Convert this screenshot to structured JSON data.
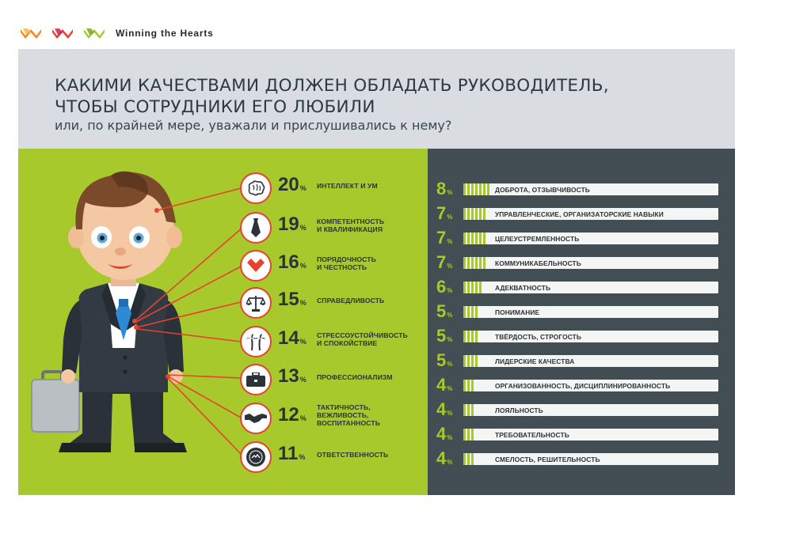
{
  "brand": {
    "name": "Winning the Hearts",
    "logo_colors": [
      "#f08a24",
      "#e8412c",
      "#a8c92c"
    ]
  },
  "header": {
    "title_line1": "КАКИМИ КАЧЕСТВАМИ ДОЛЖЕН ОБЛАДАТЬ РУКОВОДИТЕЛЬ,",
    "title_line2": "ЧТОБЫ СОТРУДНИКИ ЕГО ЛЮБИЛИ",
    "subtitle": "или, по крайней мере, уважали и прислушивались к нему?"
  },
  "colors": {
    "green": "#a8c92c",
    "dark": "#434e54",
    "red": "#e8412c",
    "header_bg": "#d9dce1"
  },
  "chart_data": {
    "type": "bar",
    "unit": "%",
    "top_qualities": [
      {
        "value": 20,
        "label": "ИНТЕЛЛЕКТ И УМ",
        "icon": "brain-icon"
      },
      {
        "value": 19,
        "label": "КОМПЕТЕНТНОСТЬ\nИ КВАЛИФИКАЦИЯ",
        "icon": "tie-icon"
      },
      {
        "value": 16,
        "label": "ПОРЯДОЧНОСТЬ\nИ ЧЕСТНОСТЬ",
        "icon": "heart-icon"
      },
      {
        "value": 15,
        "label": "СПРАВЕДЛИВОСТЬ",
        "icon": "scales-icon"
      },
      {
        "value": 14,
        "label": "СТРЕССОУСТОЙЧИВОСТЬ\nИ СПОКОЙСТВИЕ",
        "icon": "palm-icon"
      },
      {
        "value": 13,
        "label": "ПРОФЕССИОНАЛИЗМ",
        "icon": "briefcase-icon"
      },
      {
        "value": 12,
        "label": "ТАКТИЧНОСТЬ,\nВЕЖЛИВОСТЬ,\nВОСПИТАННОСТЬ",
        "icon": "handshake-icon"
      },
      {
        "value": 11,
        "label": "ОТВЕТСТВЕННОСТЬ",
        "icon": "seal-icon"
      }
    ],
    "other_qualities": [
      {
        "value": 8,
        "label": "ДОБРОТА, ОТЗЫВЧИВОСТЬ"
      },
      {
        "value": 7,
        "label": "УПРАВЛЕНЧЕСКИЕ, ОРГАНИЗАТОРСКИЕ НАВЫКИ"
      },
      {
        "value": 7,
        "label": "ЦЕЛЕУСТРЕМЛЕННОСТЬ"
      },
      {
        "value": 7,
        "label": "КОММУНИКАБЕЛЬНОСТЬ"
      },
      {
        "value": 6,
        "label": "АДЕКВАТНОСТЬ"
      },
      {
        "value": 5,
        "label": "ПОНИМАНИЕ"
      },
      {
        "value": 5,
        "label": "ТВЁРДОСТЬ, СТРОГОСТЬ"
      },
      {
        "value": 5,
        "label": "ЛИДЕРСКИЕ КАЧЕСТВА"
      },
      {
        "value": 4,
        "label": "ОРГАНИЗОВАННОСТЬ, ДИСЦИПЛИНИРОВАННОСТЬ"
      },
      {
        "value": 4,
        "label": "ЛОЯЛЬНОСТЬ"
      },
      {
        "value": 4,
        "label": "ТРЕБОВАТЕЛЬНОСТЬ"
      },
      {
        "value": 4,
        "label": "СМЕЛОСТЬ, РЕШИТЕЛЬНОСТЬ"
      }
    ],
    "pct_symbol": "%"
  }
}
